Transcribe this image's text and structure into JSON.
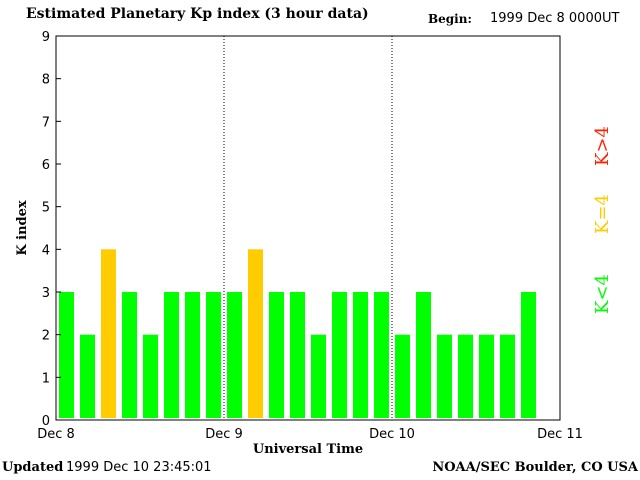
{
  "header": {
    "title": "Estimated Planetary Kp index (3 hour data)",
    "begin_label": "Begin:",
    "begin_value": "1999 Dec 8 0000UT"
  },
  "footer": {
    "updated_label": "Updated",
    "updated_value": "1999 Dec 10 23:45:01",
    "org": "NOAA/SEC Boulder, CO USA"
  },
  "legend": [
    {
      "label": "K<4",
      "color": "#00ff00"
    },
    {
      "label": "K=4",
      "color": "#ffcc00"
    },
    {
      "label": "K>4",
      "color": "#ff2200"
    }
  ],
  "chart_data": {
    "type": "bar",
    "xlabel": "Universal Time",
    "ylabel": "K index",
    "ylim": [
      0,
      9
    ],
    "yticks": [
      "0",
      "1",
      "2",
      "3",
      "4",
      "5",
      "6",
      "7",
      "8",
      "9"
    ],
    "xticks": [
      "Dec 8",
      "Dec 9",
      "Dec 10",
      "Dec 11"
    ],
    "values": [
      3,
      2,
      4,
      3,
      2,
      3,
      3,
      3,
      3,
      4,
      3,
      3,
      2,
      3,
      3,
      3,
      2,
      3,
      2,
      2,
      2,
      2,
      3
    ],
    "colors": {
      "low": "#00ff00",
      "eq4": "#ffcc00",
      "high": "#ff2200"
    },
    "grid": false
  }
}
